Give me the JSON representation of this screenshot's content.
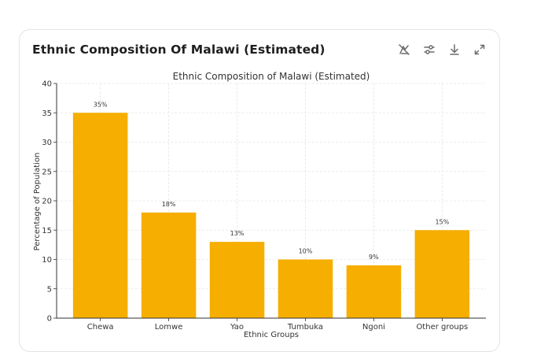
{
  "card": {
    "title": "Ethnic Composition Of Malawi (Estimated)"
  },
  "toolbar": {
    "icons": [
      "reset-view-icon",
      "settings-sliders-icon",
      "download-icon",
      "expand-icon"
    ]
  },
  "chart_data": {
    "type": "bar",
    "title": "Ethnic Composition of Malawi (Estimated)",
    "xlabel": "Ethnic Groups",
    "ylabel": "Percentage of Population",
    "categories": [
      "Chewa",
      "Lomwe",
      "Yao",
      "Tumbuka",
      "Ngoni",
      "Other groups"
    ],
    "values": [
      35,
      18,
      13,
      10,
      9,
      15
    ],
    "data_labels": [
      "35%",
      "18%",
      "13%",
      "10%",
      "9%",
      "15%"
    ],
    "ylim": [
      0,
      40
    ],
    "yticks": [
      0,
      5,
      10,
      15,
      20,
      25,
      30,
      35,
      40
    ],
    "grid": true,
    "bar_color": "#f6ae00"
  }
}
